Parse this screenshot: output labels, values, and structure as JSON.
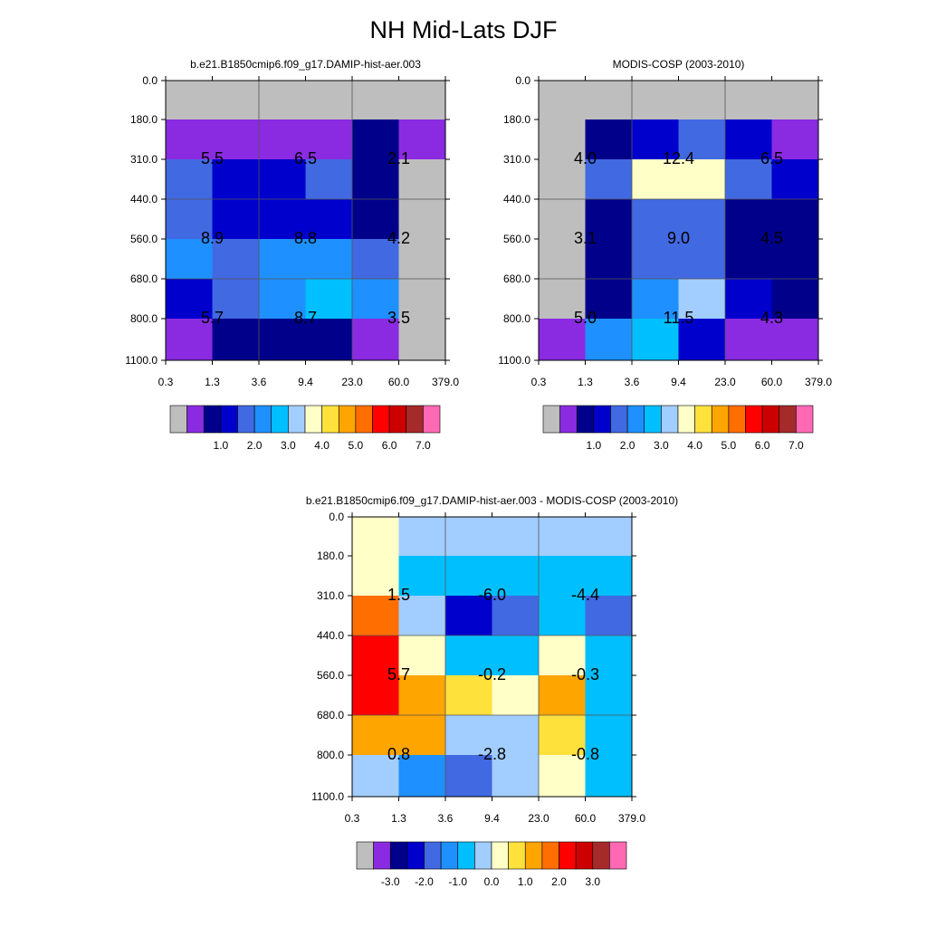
{
  "title": "NH Mid-Lats DJF",
  "chart_data": [
    {
      "type": "heatmap",
      "title": "b.e21.B1850cmip6.f09_g17.DAMIP-hist-aer.003",
      "x_ticks": [
        "0.3",
        "1.3",
        "3.6",
        "9.4",
        "23.0",
        "60.0",
        "379.0"
      ],
      "y_ticks": [
        "0.0",
        "180.0",
        "310.0",
        "440.0",
        "560.0",
        "680.0",
        "800.0",
        "1100.0"
      ],
      "cells": [
        [
          "gray",
          "gray",
          "gray",
          "gray",
          "gray",
          "gray"
        ],
        [
          "purple",
          "purple",
          "purple",
          "purple",
          "navy",
          "purple"
        ],
        [
          "royal",
          "blue",
          "blue",
          "royal",
          "navy",
          "gray"
        ],
        [
          "royal",
          "blue",
          "blue",
          "blue",
          "navy",
          "gray"
        ],
        [
          "dodger",
          "royal",
          "dodger",
          "dodger",
          "royal",
          "gray"
        ],
        [
          "blue",
          "royal",
          "dodger",
          "deepsky",
          "dodger",
          "gray"
        ],
        [
          "purple",
          "navy",
          "navy",
          "navy",
          "purple",
          "gray"
        ]
      ],
      "annotations": [
        {
          "row": 1,
          "col": 0,
          "text": "5.5"
        },
        {
          "row": 1,
          "col": 2,
          "text": "6.5"
        },
        {
          "row": 1,
          "col": 4,
          "text": "2.1"
        },
        {
          "row": 3,
          "col": 0,
          "text": "8.9"
        },
        {
          "row": 3,
          "col": 2,
          "text": "8.8"
        },
        {
          "row": 3,
          "col": 4,
          "text": "4.2"
        },
        {
          "row": 5,
          "col": 0,
          "text": "5.7"
        },
        {
          "row": 5,
          "col": 2,
          "text": "8.7"
        },
        {
          "row": 5,
          "col": 4,
          "text": "3.5"
        }
      ],
      "colorbar": {
        "colors": [
          "gray",
          "purple",
          "navy",
          "blue",
          "royal",
          "dodger",
          "deepsky",
          "lightsky",
          "cream",
          "gold",
          "orange",
          "darkorange",
          "red",
          "darkred",
          "brown",
          "pink"
        ],
        "labels": [
          "1.0",
          "2.0",
          "3.0",
          "4.0",
          "5.0",
          "6.0",
          "7.0"
        ],
        "label_start_boundary": 3
      }
    },
    {
      "type": "heatmap",
      "title": "MODIS-COSP (2003-2010)",
      "x_ticks": [
        "0.3",
        "1.3",
        "3.6",
        "9.4",
        "23.0",
        "60.0",
        "379.0"
      ],
      "y_ticks": [
        "0.0",
        "180.0",
        "310.0",
        "440.0",
        "560.0",
        "680.0",
        "800.0",
        "1100.0"
      ],
      "cells": [
        [
          "gray",
          "gray",
          "gray",
          "gray",
          "gray",
          "gray"
        ],
        [
          "gray",
          "navy",
          "blue",
          "royal",
          "blue",
          "purple"
        ],
        [
          "gray",
          "royal",
          "cream",
          "cream",
          "royal",
          "blue"
        ],
        [
          "gray",
          "navy",
          "royal",
          "royal",
          "navy",
          "navy"
        ],
        [
          "gray",
          "navy",
          "royal",
          "royal",
          "navy",
          "navy"
        ],
        [
          "gray",
          "navy",
          "dodger",
          "lightsky",
          "blue",
          "navy"
        ],
        [
          "purple",
          "dodger",
          "deepsky",
          "blue",
          "purple",
          "purple"
        ]
      ],
      "annotations": [
        {
          "row": 1,
          "col": 0,
          "text": "4.0"
        },
        {
          "row": 1,
          "col": 2,
          "text": "12.4"
        },
        {
          "row": 1,
          "col": 4,
          "text": "6.5"
        },
        {
          "row": 3,
          "col": 0,
          "text": "3.1"
        },
        {
          "row": 3,
          "col": 2,
          "text": "9.0"
        },
        {
          "row": 3,
          "col": 4,
          "text": "4.5"
        },
        {
          "row": 5,
          "col": 0,
          "text": "5.0"
        },
        {
          "row": 5,
          "col": 2,
          "text": "11.5"
        },
        {
          "row": 5,
          "col": 4,
          "text": "4.3"
        }
      ],
      "colorbar": {
        "colors": [
          "gray",
          "purple",
          "navy",
          "blue",
          "royal",
          "dodger",
          "deepsky",
          "lightsky",
          "cream",
          "gold",
          "orange",
          "darkorange",
          "red",
          "darkred",
          "brown",
          "pink"
        ],
        "labels": [
          "1.0",
          "2.0",
          "3.0",
          "4.0",
          "5.0",
          "6.0",
          "7.0"
        ],
        "label_start_boundary": 3
      }
    },
    {
      "type": "heatmap",
      "title": "b.e21.B1850cmip6.f09_g17.DAMIP-hist-aer.003 - MODIS-COSP (2003-2010)",
      "x_ticks": [
        "0.3",
        "1.3",
        "3.6",
        "9.4",
        "23.0",
        "60.0",
        "379.0"
      ],
      "y_ticks": [
        "0.0",
        "180.0",
        "310.0",
        "440.0",
        "560.0",
        "680.0",
        "800.0",
        "1100.0"
      ],
      "cells": [
        [
          "cream",
          "lightsky",
          "lightsky",
          "lightsky",
          "lightsky",
          "lightsky"
        ],
        [
          "cream",
          "deepsky",
          "deepsky",
          "deepsky",
          "deepsky",
          "deepsky"
        ],
        [
          "darkorange",
          "lightsky",
          "blue",
          "royal",
          "deepsky",
          "royal"
        ],
        [
          "red",
          "cream",
          "deepsky",
          "deepsky",
          "cream",
          "deepsky"
        ],
        [
          "red",
          "orange",
          "gold",
          "cream",
          "orange",
          "deepsky"
        ],
        [
          "orange",
          "orange",
          "lightsky",
          "lightsky",
          "gold",
          "deepsky"
        ],
        [
          "lightsky",
          "dodger",
          "royal",
          "lightsky",
          "cream",
          "deepsky"
        ]
      ],
      "annotations": [
        {
          "row": 1,
          "col": 0,
          "text": "1.5"
        },
        {
          "row": 1,
          "col": 2,
          "text": "-6.0"
        },
        {
          "row": 1,
          "col": 4,
          "text": "-4.4"
        },
        {
          "row": 3,
          "col": 0,
          "text": "5.7"
        },
        {
          "row": 3,
          "col": 2,
          "text": "-0.2"
        },
        {
          "row": 3,
          "col": 4,
          "text": "-0.3"
        },
        {
          "row": 5,
          "col": 0,
          "text": "0.8"
        },
        {
          "row": 5,
          "col": 2,
          "text": "-2.8"
        },
        {
          "row": 5,
          "col": 4,
          "text": "-0.8"
        }
      ],
      "colorbar": {
        "colors": [
          "gray",
          "purple",
          "navy",
          "blue",
          "royal",
          "dodger",
          "deepsky",
          "lightsky",
          "cream",
          "gold",
          "orange",
          "darkorange",
          "red",
          "darkred",
          "brown",
          "pink"
        ],
        "labels": [
          "-3.0",
          "-2.0",
          "-1.0",
          "0.0",
          "1.0",
          "2.0",
          "3.0"
        ],
        "label_start_boundary": 2
      }
    }
  ],
  "palette": {
    "gray": "#bebebe",
    "purple": "#8a2be2",
    "navy": "#00008b",
    "blue": "#0000cd",
    "royal": "#4169e1",
    "dodger": "#1e90ff",
    "deepsky": "#00bfff",
    "lightsky": "#a2cdff",
    "cream": "#ffffc8",
    "gold": "#ffe13c",
    "orange": "#ffa500",
    "darkorange": "#ff6e00",
    "red": "#ff0000",
    "darkred": "#cd0000",
    "brown": "#a52a2a",
    "pink": "#ff69b4"
  }
}
